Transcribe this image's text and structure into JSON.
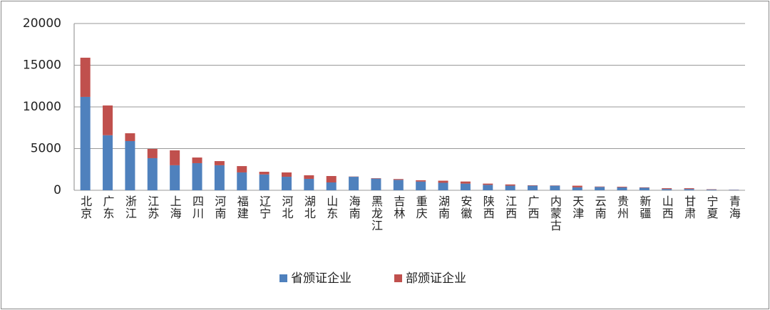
{
  "chart_data": {
    "type": "stacked-bar",
    "categories": [
      "北京",
      "广东",
      "浙江",
      "江苏",
      "上海",
      "四川",
      "河南",
      "福建",
      "辽宁",
      "河北",
      "湖北",
      "山东",
      "海南",
      "黑龙江",
      "吉林",
      "重庆",
      "湖南",
      "安徽",
      "陕西",
      "江西",
      "广西",
      "内蒙古",
      "天津",
      "云南",
      "贵州",
      "新疆",
      "山西",
      "甘肃",
      "宁夏",
      "青海"
    ],
    "series": [
      {
        "name": "省颁证企业",
        "color": "#4f81bd",
        "values": [
          11200,
          6600,
          5900,
          3850,
          3000,
          3250,
          3000,
          2140,
          1900,
          1620,
          1370,
          940,
          1620,
          1400,
          1250,
          1050,
          900,
          800,
          650,
          550,
          550,
          550,
          350,
          400,
          350,
          300,
          150,
          150,
          80,
          50
        ]
      },
      {
        "name": "部颁证企业",
        "color": "#c0504d",
        "values": [
          4700,
          3570,
          940,
          1110,
          1790,
          680,
          500,
          760,
          320,
          520,
          430,
          770,
          30,
          50,
          100,
          150,
          250,
          250,
          150,
          150,
          50,
          30,
          200,
          50,
          80,
          50,
          100,
          100,
          40,
          20
        ]
      }
    ],
    "ylim": [
      0,
      20000
    ],
    "yticks": [
      0,
      5000,
      10000,
      15000,
      20000
    ],
    "grid": true,
    "legend": "bottom"
  }
}
